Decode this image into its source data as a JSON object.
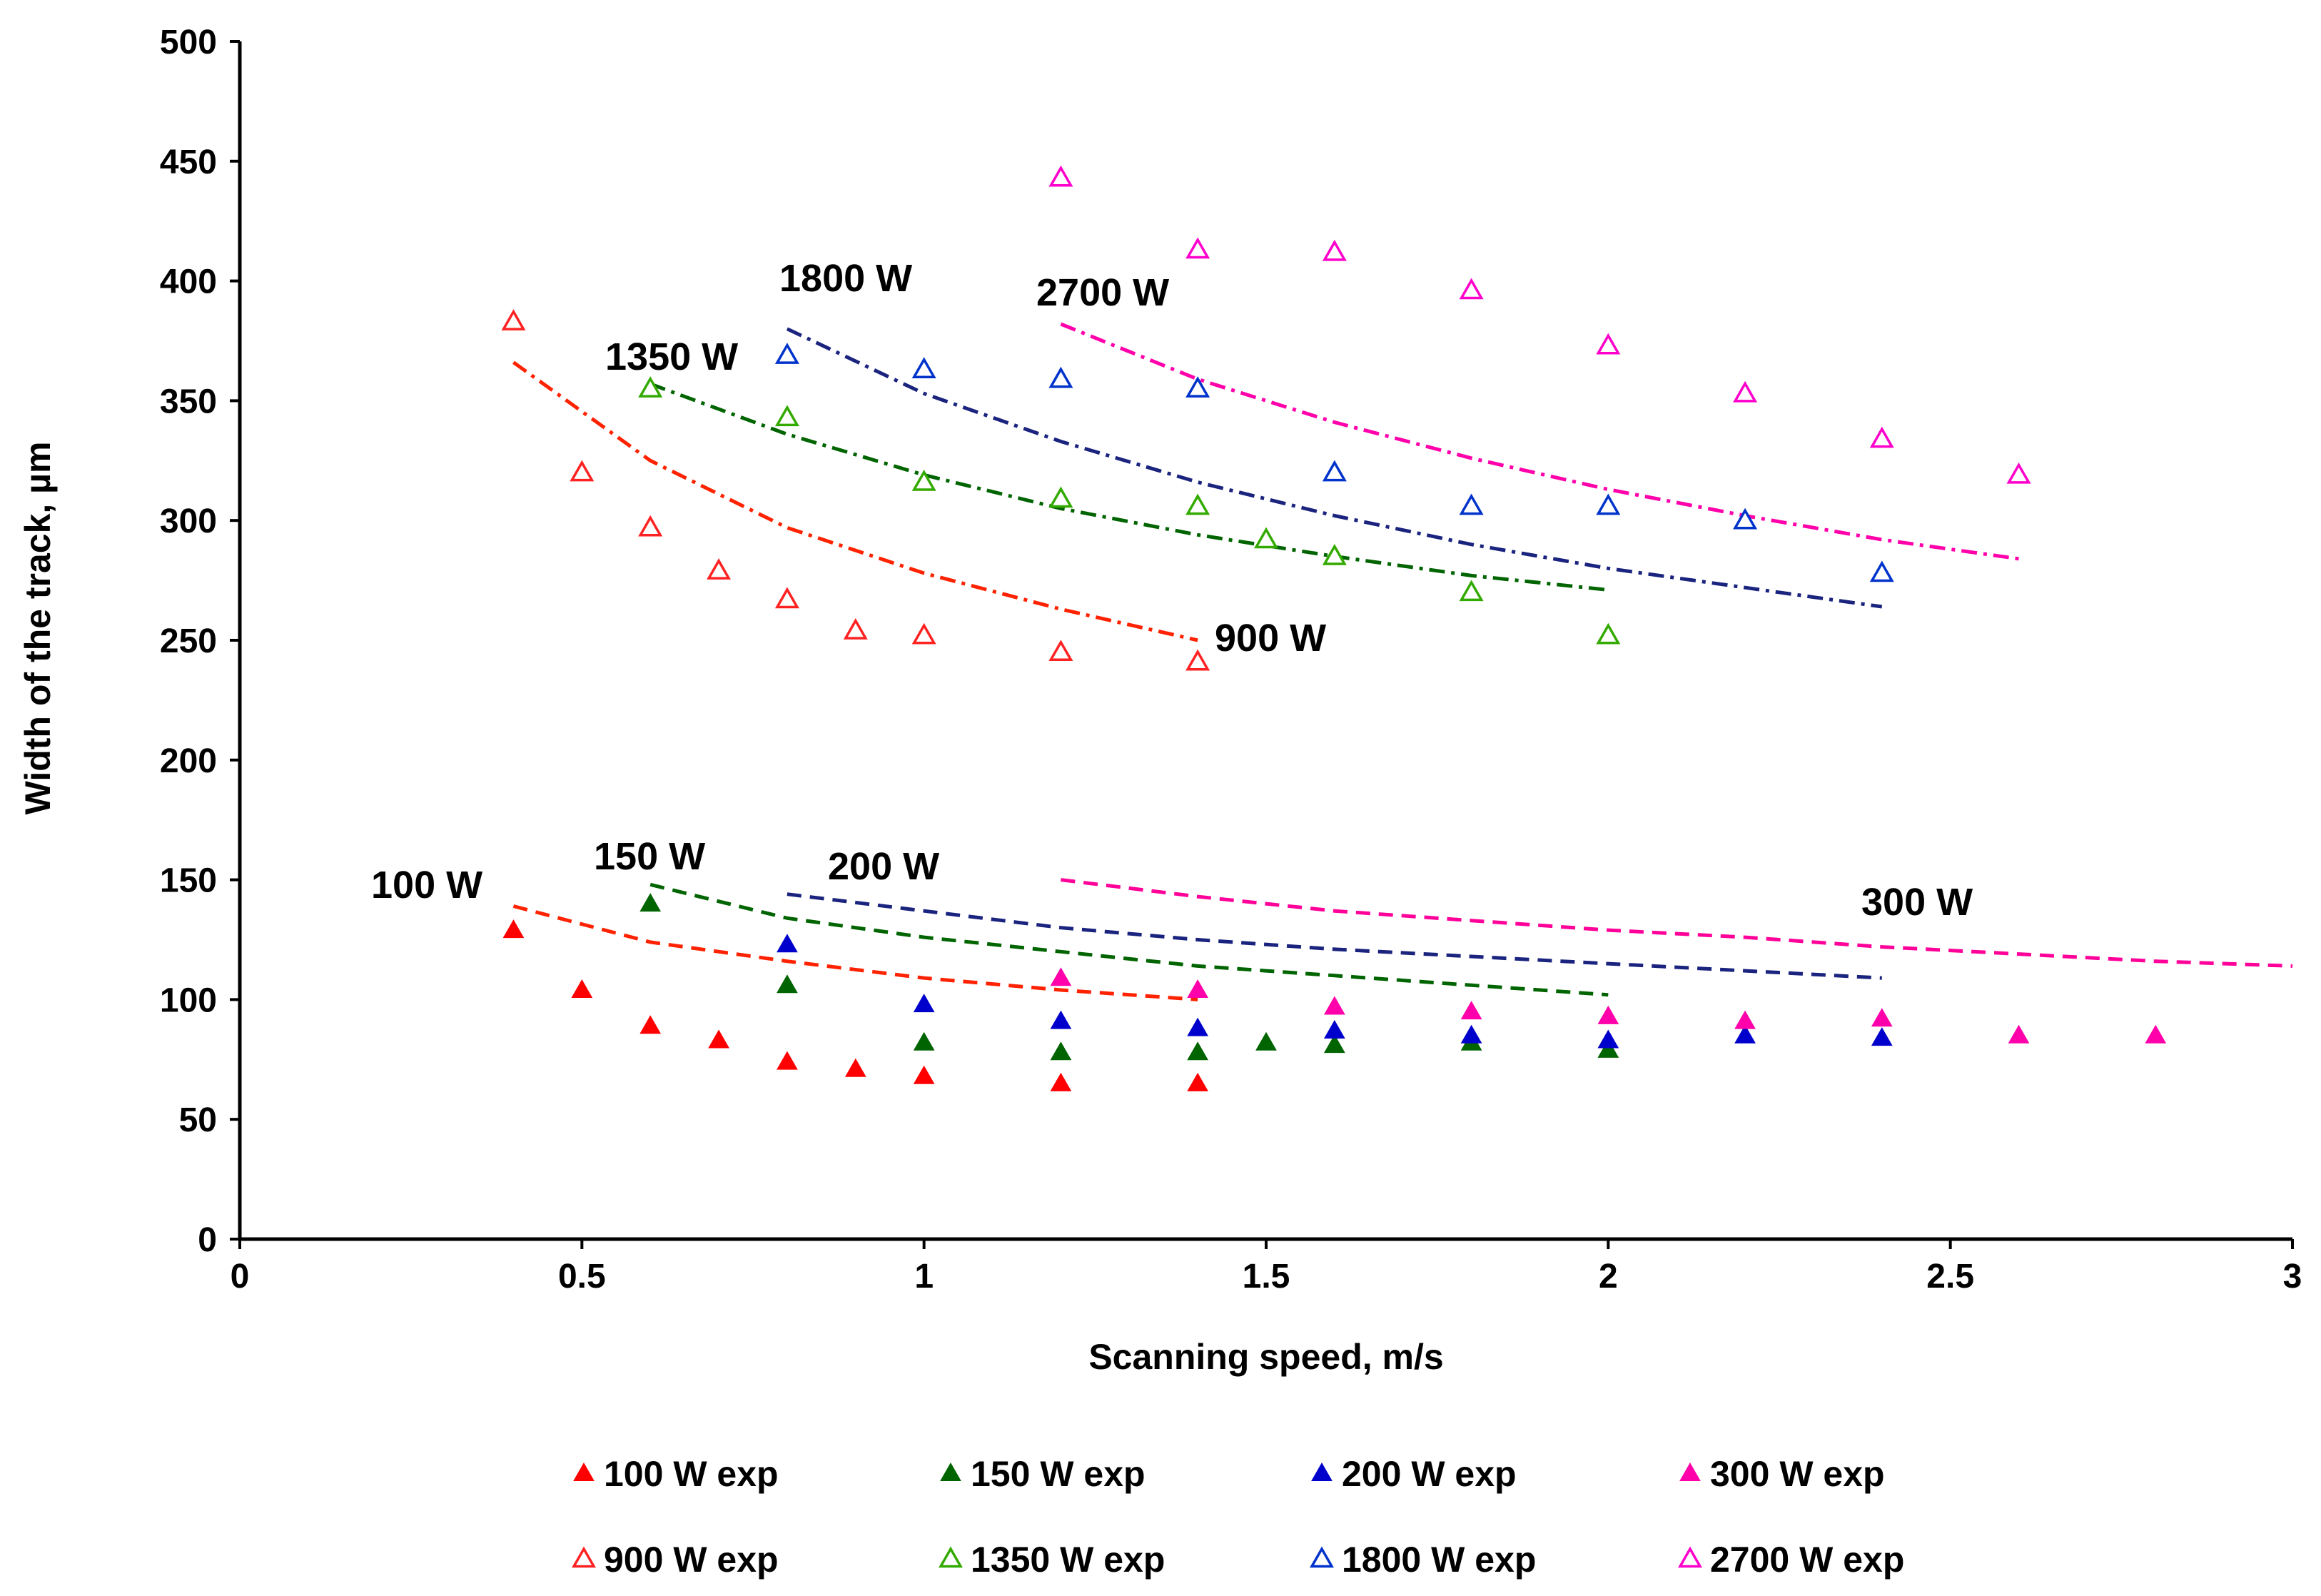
{
  "chart_data": {
    "type": "scatter",
    "xlabel": "Scanning speed, m/s",
    "ylabel": "Width of the track, µm",
    "xlim": [
      0,
      3
    ],
    "ylim": [
      0,
      500
    ],
    "xticks": [
      0,
      0.5,
      1,
      1.5,
      2,
      2.5,
      3
    ],
    "xtick_labels": [
      "0",
      "0.5",
      "1",
      "1.5",
      "2",
      "2.5",
      "3"
    ],
    "yticks": [
      0,
      50,
      100,
      150,
      200,
      250,
      300,
      350,
      400,
      450,
      500
    ],
    "ytick_labels": [
      "0",
      "50",
      "100",
      "150",
      "200",
      "250",
      "300",
      "350",
      "400",
      "450",
      "500"
    ],
    "grid": false,
    "legend_position": "bottom",
    "series": [
      {
        "name": "100 W exp",
        "color": "#ff0000",
        "marker": "filled-triangle",
        "x": [
          0.4,
          0.5,
          0.6,
          0.7,
          0.8,
          0.9,
          1.0,
          1.2,
          1.4
        ],
        "y": [
          129,
          104,
          89,
          83,
          74,
          71,
          68,
          65,
          65
        ]
      },
      {
        "name": "150 W exp",
        "color": "#006400",
        "marker": "filled-triangle",
        "x": [
          0.6,
          0.8,
          1.0,
          1.2,
          1.4,
          1.5,
          1.6,
          1.8,
          2.0
        ],
        "y": [
          140,
          106,
          82,
          78,
          78,
          82,
          81,
          82,
          79
        ]
      },
      {
        "name": "200 W exp",
        "color": "#0000cc",
        "marker": "filled-triangle",
        "x": [
          0.8,
          1.0,
          1.2,
          1.4,
          1.6,
          1.8,
          2.0,
          2.2,
          2.4
        ],
        "y": [
          123,
          98,
          91,
          88,
          87,
          85,
          83,
          85,
          84
        ]
      },
      {
        "name": "300 W exp",
        "color": "#ff00aa",
        "marker": "filled-triangle",
        "x": [
          1.2,
          1.4,
          1.6,
          1.8,
          2.0,
          2.2,
          2.4,
          2.6,
          2.8
        ],
        "y": [
          109,
          104,
          97,
          95,
          93,
          91,
          92,
          85,
          85
        ]
      },
      {
        "name": "900 W exp",
        "color": "#ff2222",
        "marker": "open-triangle",
        "x": [
          0.4,
          0.5,
          0.6,
          0.7,
          0.8,
          0.9,
          1.0,
          1.2,
          1.4
        ],
        "y": [
          383,
          320,
          297,
          279,
          267,
          254,
          252,
          245,
          241
        ]
      },
      {
        "name": "1350 W exp",
        "color": "#33aa00",
        "marker": "open-triangle",
        "x": [
          0.6,
          0.8,
          1.0,
          1.2,
          1.4,
          1.5,
          1.6,
          1.8,
          2.0
        ],
        "y": [
          355,
          343,
          316,
          309,
          306,
          292,
          285,
          270,
          252
        ]
      },
      {
        "name": "1800 W exp",
        "color": "#0033cc",
        "marker": "open-triangle",
        "x": [
          0.8,
          1.0,
          1.2,
          1.4,
          1.6,
          1.8,
          2.0,
          2.2,
          2.4
        ],
        "y": [
          369,
          363,
          359,
          355,
          320,
          306,
          306,
          300,
          278
        ]
      },
      {
        "name": "2700 W exp",
        "color": "#ff00cc",
        "marker": "open-triangle",
        "x": [
          1.2,
          1.4,
          1.6,
          1.8,
          2.0,
          2.2,
          2.4,
          2.6
        ],
        "y": [
          443,
          413,
          412,
          396,
          373,
          353,
          334,
          319
        ]
      }
    ],
    "model_curves": [
      {
        "label": "100 W",
        "color": "#ff2200",
        "style": "dashed",
        "x": [
          0.4,
          0.6,
          0.8,
          1.0,
          1.2,
          1.4
        ],
        "y": [
          139,
          124,
          116,
          109,
          104,
          100
        ]
      },
      {
        "label": "150 W",
        "color": "#006400",
        "style": "dashed",
        "x": [
          0.6,
          0.8,
          1.0,
          1.2,
          1.4,
          1.6,
          1.8,
          2.0
        ],
        "y": [
          148,
          134,
          126,
          120,
          114,
          110,
          106,
          102
        ]
      },
      {
        "label": "200 W",
        "color": "#1a237e",
        "style": "dashed",
        "x": [
          0.8,
          1.0,
          1.2,
          1.4,
          1.6,
          1.8,
          2.0,
          2.2,
          2.4
        ],
        "y": [
          144,
          137,
          130,
          125,
          121,
          118,
          115,
          112,
          109
        ]
      },
      {
        "label": "300 W",
        "color": "#ff0099",
        "style": "dashed",
        "x": [
          1.2,
          1.4,
          1.6,
          1.8,
          2.0,
          2.2,
          2.4,
          2.6,
          2.8,
          3.0
        ],
        "y": [
          150,
          143,
          137,
          133,
          129,
          126,
          122,
          119,
          116,
          114
        ]
      },
      {
        "label": "900 W",
        "color": "#ff2200",
        "style": "dash-dot",
        "x": [
          0.4,
          0.6,
          0.8,
          1.0,
          1.2,
          1.4
        ],
        "y": [
          366,
          325,
          297,
          278,
          263,
          250
        ]
      },
      {
        "label": "1350 W",
        "color": "#006400",
        "style": "dash-dot",
        "x": [
          0.6,
          0.8,
          1.0,
          1.2,
          1.4,
          1.6,
          1.8,
          2.0
        ],
        "y": [
          357,
          336,
          319,
          305,
          294,
          285,
          277,
          271
        ]
      },
      {
        "label": "1800 W",
        "color": "#1a237e",
        "style": "dash-dot",
        "x": [
          0.8,
          1.0,
          1.2,
          1.4,
          1.6,
          1.8,
          2.0,
          2.2,
          2.4
        ],
        "y": [
          380,
          353,
          333,
          316,
          302,
          290,
          280,
          272,
          264
        ]
      },
      {
        "label": "2700 W",
        "color": "#ff00aa",
        "style": "dash-dot",
        "x": [
          1.2,
          1.4,
          1.6,
          1.8,
          2.0,
          2.2,
          2.4,
          2.6
        ],
        "y": [
          382,
          359,
          341,
          326,
          313,
          302,
          292,
          284
        ]
      }
    ]
  }
}
